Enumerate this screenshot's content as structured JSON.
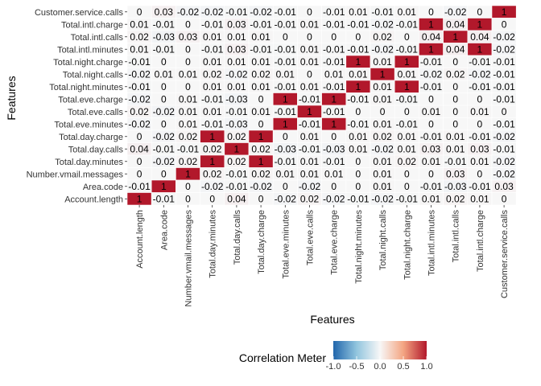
{
  "chart_data": {
    "type": "heatmap",
    "xlabel": "Features",
    "ylabel": "Features",
    "features": [
      "Account.length",
      "Area.code",
      "Number.vmail.messages",
      "Total.day.minutes",
      "Total.day.calls",
      "Total.day.charge",
      "Total.eve.minutes",
      "Total.eve.calls",
      "Total.eve.charge",
      "Total.night.minutes",
      "Total.night.calls",
      "Total.night.charge",
      "Total.intl.minutes",
      "Total.intl.calls",
      "Total.intl.charge",
      "Customer.service.calls"
    ],
    "matrix": [
      [
        1,
        -0.01,
        0,
        0,
        0.04,
        0,
        -0.02,
        0.02,
        -0.02,
        -0.01,
        -0.02,
        -0.01,
        0.01,
        0.02,
        0.01,
        0
      ],
      [
        -0.01,
        1,
        0,
        -0.02,
        -0.01,
        -0.02,
        0,
        -0.02,
        0,
        0,
        0.01,
        0,
        -0.01,
        -0.03,
        -0.01,
        0.03
      ],
      [
        0,
        0,
        1,
        0.02,
        -0.01,
        0.02,
        0.01,
        0.01,
        0.01,
        0,
        0.01,
        0,
        0,
        0.03,
        0,
        -0.02
      ],
      [
        0,
        -0.02,
        0.02,
        1,
        0.02,
        1,
        -0.01,
        0.01,
        -0.01,
        0,
        0.01,
        0.02,
        0.01,
        -0.01,
        0.01,
        -0.02
      ],
      [
        0.04,
        -0.01,
        -0.01,
        0.02,
        1,
        0.02,
        -0.03,
        -0.01,
        -0.03,
        0.01,
        -0.02,
        0.01,
        0.03,
        0.01,
        0.03,
        -0.01
      ],
      [
        0,
        -0.02,
        0.02,
        1,
        0.02,
        1,
        0,
        0.01,
        0,
        0.01,
        0.02,
        0.01,
        -0.01,
        0.01,
        -0.01,
        -0.02
      ],
      [
        -0.02,
        0,
        0.01,
        -0.01,
        -0.03,
        0,
        1,
        -0.01,
        1,
        -0.01,
        0.01,
        -0.01,
        0,
        0,
        0,
        -0.01
      ],
      [
        0.02,
        -0.02,
        0.01,
        0.01,
        -0.01,
        0.01,
        -0.01,
        1,
        -0.01,
        0,
        0,
        0,
        0.01,
        0,
        0.01,
        0
      ],
      [
        -0.02,
        0,
        0.01,
        -0.01,
        -0.03,
        0,
        1,
        -0.01,
        1,
        -0.01,
        0.01,
        -0.01,
        0,
        0,
        0,
        -0.01
      ],
      [
        -0.01,
        0,
        0,
        0.01,
        0.01,
        0.01,
        -0.01,
        0.01,
        -0.01,
        1,
        0.01,
        1,
        -0.01,
        0,
        -0.01,
        -0.01
      ],
      [
        -0.02,
        0.01,
        0.01,
        0.02,
        -0.02,
        0.02,
        0.01,
        0,
        0.01,
        0.01,
        1,
        0.01,
        -0.02,
        0.02,
        -0.02,
        -0.01
      ],
      [
        -0.01,
        0,
        0,
        0.01,
        0.01,
        0.01,
        -0.01,
        0.01,
        -0.01,
        1,
        0.01,
        1,
        -0.01,
        0,
        -0.01,
        -0.01
      ],
      [
        0.01,
        -0.01,
        0,
        -0.01,
        0.03,
        -0.01,
        -0.01,
        0.01,
        -0.01,
        -0.01,
        -0.02,
        -0.01,
        1,
        0.04,
        1,
        -0.02
      ],
      [
        0.02,
        -0.03,
        0.03,
        0.01,
        0.01,
        0.01,
        0,
        0,
        0,
        0,
        0.02,
        0,
        0.04,
        1,
        0.04,
        -0.02
      ],
      [
        0.01,
        -0.01,
        0,
        -0.01,
        0.03,
        -0.01,
        -0.01,
        0.01,
        -0.01,
        -0.01,
        -0.02,
        -0.01,
        1,
        0.04,
        1,
        0
      ],
      [
        0,
        0.03,
        -0.02,
        -0.02,
        -0.01,
        -0.02,
        -0.01,
        0,
        -0.01,
        0.01,
        -0.01,
        0.01,
        0,
        -0.02,
        0,
        1
      ]
    ],
    "color_scale": {
      "low": "#2166ac",
      "mid": "#f7f7f7",
      "high": "#b2182b",
      "range": [
        -1,
        1
      ]
    },
    "legend": {
      "title": "Correlation Meter",
      "ticks": [
        -1.0,
        -0.5,
        0.0,
        0.5,
        1.0
      ],
      "tick_labels": [
        "-1.0",
        "-0.5",
        "0.0",
        "0.5",
        "1.0"
      ],
      "position": "bottom"
    },
    "grid": false
  }
}
